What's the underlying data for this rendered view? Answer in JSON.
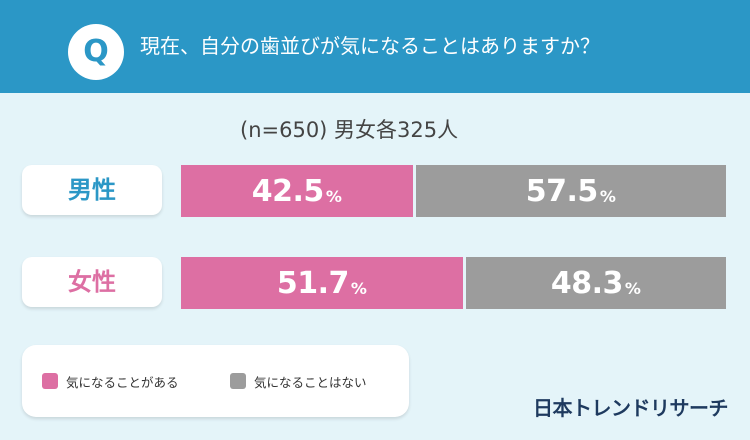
{
  "header": {
    "q_mark": "Q",
    "question": "現在、自分の歯並びが気になることはありますか？"
  },
  "sample_note": "(n=650) 男女各325人",
  "colors": {
    "header_bg": "#2b97c6",
    "background": "#e4f4f9",
    "yes": "#dd6fa3",
    "no": "#9c9c9c",
    "male_label": "#2b97c6",
    "female_label": "#dd6fa3"
  },
  "chart_data": {
    "type": "bar",
    "orientation": "horizontal-stacked-100",
    "title": "現在、自分の歯並びが気になることはありますか？",
    "categories": [
      "男性",
      "女性"
    ],
    "series": [
      {
        "name": "気になることがある",
        "values": [
          42.5,
          51.7
        ],
        "color": "#dd6fa3"
      },
      {
        "name": "気になることはない",
        "values": [
          57.5,
          48.3
        ],
        "color": "#9c9c9c"
      }
    ],
    "unit": "%",
    "xlim": [
      0,
      100
    ],
    "legend_position": "bottom-left",
    "grid": false
  },
  "legend": [
    {
      "label": "気になることがある",
      "color": "#dd6fa3"
    },
    {
      "label": "気になることはない",
      "color": "#9c9c9c"
    }
  ],
  "logo": "日本トレンドリサーチ"
}
